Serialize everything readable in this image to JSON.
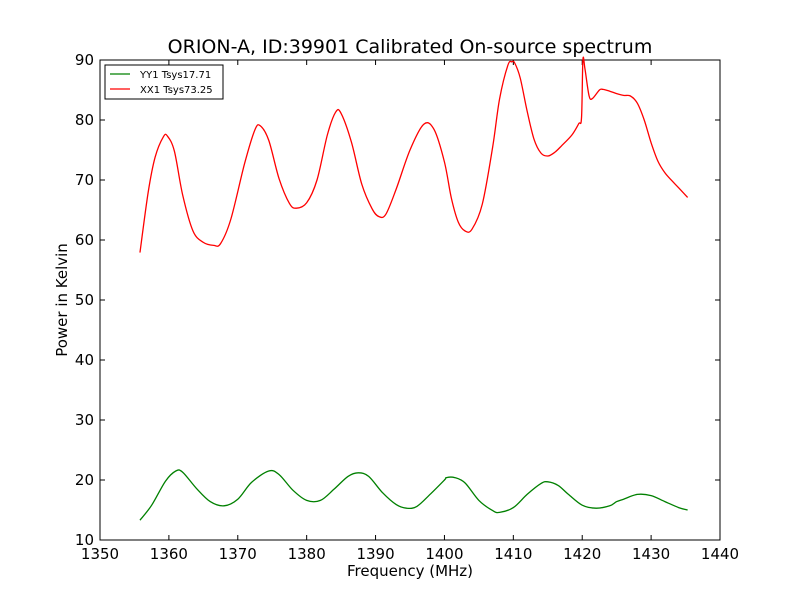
{
  "chart_data": {
    "type": "line",
    "title": "ORION-A, ID:39901 Calibrated On-source spectrum",
    "xlabel": "Frequency (MHz)",
    "ylabel": "Power in Kelvin",
    "xlim": [
      1350,
      1440
    ],
    "ylim": [
      10,
      90
    ],
    "xticks": [
      1350,
      1360,
      1370,
      1380,
      1390,
      1400,
      1410,
      1420,
      1430,
      1440
    ],
    "yticks": [
      10,
      20,
      30,
      40,
      50,
      60,
      70,
      80,
      90
    ],
    "grid": false,
    "legend_position": "top-left",
    "series": [
      {
        "name": "YY1 Tsys17.71",
        "color": "#008000",
        "x": [
          1355.8,
          1357.5,
          1359.5,
          1361.0,
          1362.0,
          1364.0,
          1366.0,
          1368.0,
          1370.0,
          1372.0,
          1374.5,
          1376.0,
          1378.0,
          1380.0,
          1382.0,
          1384.0,
          1386.0,
          1387.5,
          1389.0,
          1391.0,
          1393.0,
          1394.5,
          1396.0,
          1398.0,
          1400.0,
          1400.3,
          1401.5,
          1403.0,
          1405.0,
          1407.0,
          1408.0,
          1410.0,
          1412.0,
          1414.0,
          1415.0,
          1416.5,
          1418.0,
          1420.0,
          1422.0,
          1424.0,
          1425.0,
          1426.0,
          1428.0,
          1430.0,
          1432.0,
          1434.0,
          1435.3
        ],
        "y": [
          13.3,
          15.8,
          19.8,
          21.5,
          21.3,
          18.6,
          16.4,
          15.7,
          16.8,
          19.6,
          21.5,
          20.9,
          18.3,
          16.6,
          16.6,
          18.5,
          20.6,
          21.2,
          20.6,
          17.9,
          15.9,
          15.3,
          15.6,
          17.7,
          20.0,
          20.4,
          20.4,
          19.5,
          16.6,
          14.9,
          14.6,
          15.4,
          17.6,
          19.4,
          19.7,
          19.1,
          17.6,
          15.8,
          15.3,
          15.7,
          16.4,
          16.8,
          17.6,
          17.4,
          16.4,
          15.4,
          15.0
        ]
      },
      {
        "name": "XX1 Tsys73.25",
        "color": "#ff0000",
        "x": [
          1355.8,
          1357.0,
          1358.0,
          1359.2,
          1359.8,
          1360.8,
          1362.0,
          1363.5,
          1365.0,
          1366.5,
          1367.5,
          1369.0,
          1371.0,
          1372.5,
          1373.3,
          1374.5,
          1376.0,
          1377.5,
          1378.5,
          1380.0,
          1381.5,
          1383.0,
          1384.2,
          1385.0,
          1386.5,
          1388.0,
          1389.5,
          1390.5,
          1391.5,
          1393.0,
          1395.0,
          1397.0,
          1398.5,
          1400.0,
          1401.0,
          1402.0,
          1403.0,
          1404.0,
          1405.5,
          1407.0,
          1408.0,
          1409.2,
          1409.8,
          1410.2,
          1411.0,
          1412.0,
          1413.0,
          1414.0,
          1415.0,
          1416.0,
          1417.0,
          1418.5,
          1419.5,
          1419.9,
          1420.1,
          1420.4,
          1421.0,
          1421.5,
          1422.5,
          1423.0,
          1424.0,
          1425.0,
          1426.0,
          1427.0,
          1428.0,
          1429.0,
          1430.0,
          1431.0,
          1432.0,
          1433.0,
          1434.0,
          1435.3
        ],
        "y": [
          57.9,
          68.0,
          73.8,
          77.2,
          77.3,
          74.8,
          67.5,
          61.5,
          59.6,
          59.1,
          59.4,
          63.5,
          72.8,
          78.4,
          79.0,
          76.6,
          70.2,
          66.1,
          65.3,
          66.2,
          70.0,
          77.5,
          81.3,
          81.1,
          76.3,
          69.3,
          65.2,
          63.9,
          64.3,
          68.5,
          75.0,
          79.3,
          78.4,
          73.0,
          67.0,
          63.0,
          61.5,
          61.8,
          66.0,
          75.5,
          83.5,
          89.1,
          89.7,
          89.5,
          87.0,
          81.5,
          76.8,
          74.5,
          74.0,
          74.6,
          75.7,
          77.5,
          79.4,
          80.4,
          90.0,
          88.5,
          84.0,
          83.6,
          85.0,
          85.1,
          84.8,
          84.4,
          84.1,
          84.0,
          82.8,
          80.0,
          76.2,
          73.1,
          71.2,
          69.9,
          68.7,
          67.1
        ]
      }
    ]
  }
}
